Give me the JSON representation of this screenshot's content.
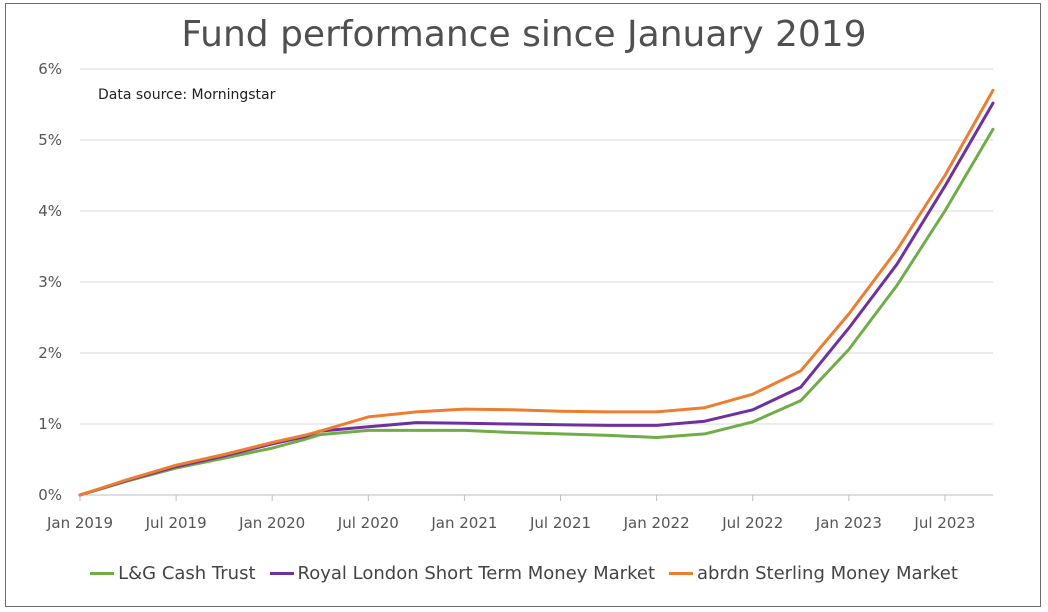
{
  "chart_data": {
    "type": "line",
    "title": "Fund performance since January 2019",
    "annotation": "Data source: Morningstar",
    "xlabel": "",
    "ylabel": "",
    "x_ticks": [
      "Jan 2019",
      "Jul 2019",
      "Jan 2020",
      "Jul 2020",
      "Jan 2021",
      "Jul 2021",
      "Jan 2022",
      "Jul 2022",
      "Jan 2023",
      "Jul 2023"
    ],
    "y_ticks": [
      "0%",
      "1%",
      "2%",
      "3%",
      "4%",
      "5%",
      "6%"
    ],
    "ylim": [
      0,
      6
    ],
    "xlim": [
      "2019-01",
      "2023-10"
    ],
    "grid": "horizontal",
    "legend_position": "bottom",
    "x": [
      "2019-01",
      "2019-04",
      "2019-07",
      "2019-10",
      "2020-01",
      "2020-03",
      "2020-04",
      "2020-07",
      "2020-10",
      "2021-01",
      "2021-04",
      "2021-07",
      "2021-10",
      "2022-01",
      "2022-04",
      "2022-07",
      "2022-10",
      "2023-01",
      "2023-04",
      "2023-07",
      "2023-10"
    ],
    "series": [
      {
        "name": "L&G Cash Trust",
        "color": "#70ad47",
        "values": [
          0.0,
          0.2,
          0.38,
          0.52,
          0.66,
          0.78,
          0.85,
          0.91,
          0.91,
          0.91,
          0.88,
          0.86,
          0.84,
          0.81,
          0.86,
          1.03,
          1.33,
          2.05,
          2.95,
          4.0,
          5.15
        ]
      },
      {
        "name": "Royal London Short Term Money Market",
        "color": "#7030a0",
        "values": [
          0.0,
          0.21,
          0.4,
          0.55,
          0.72,
          0.82,
          0.9,
          0.96,
          1.02,
          1.01,
          1.0,
          0.99,
          0.98,
          0.98,
          1.04,
          1.2,
          1.52,
          2.35,
          3.25,
          4.35,
          5.52
        ]
      },
      {
        "name": "abrdn Sterling Money Market",
        "color": "#ed7d31",
        "values": [
          0.0,
          0.22,
          0.42,
          0.57,
          0.74,
          0.84,
          0.9,
          1.1,
          1.17,
          1.21,
          1.2,
          1.18,
          1.17,
          1.17,
          1.23,
          1.42,
          1.75,
          2.55,
          3.45,
          4.5,
          5.7
        ]
      }
    ]
  }
}
